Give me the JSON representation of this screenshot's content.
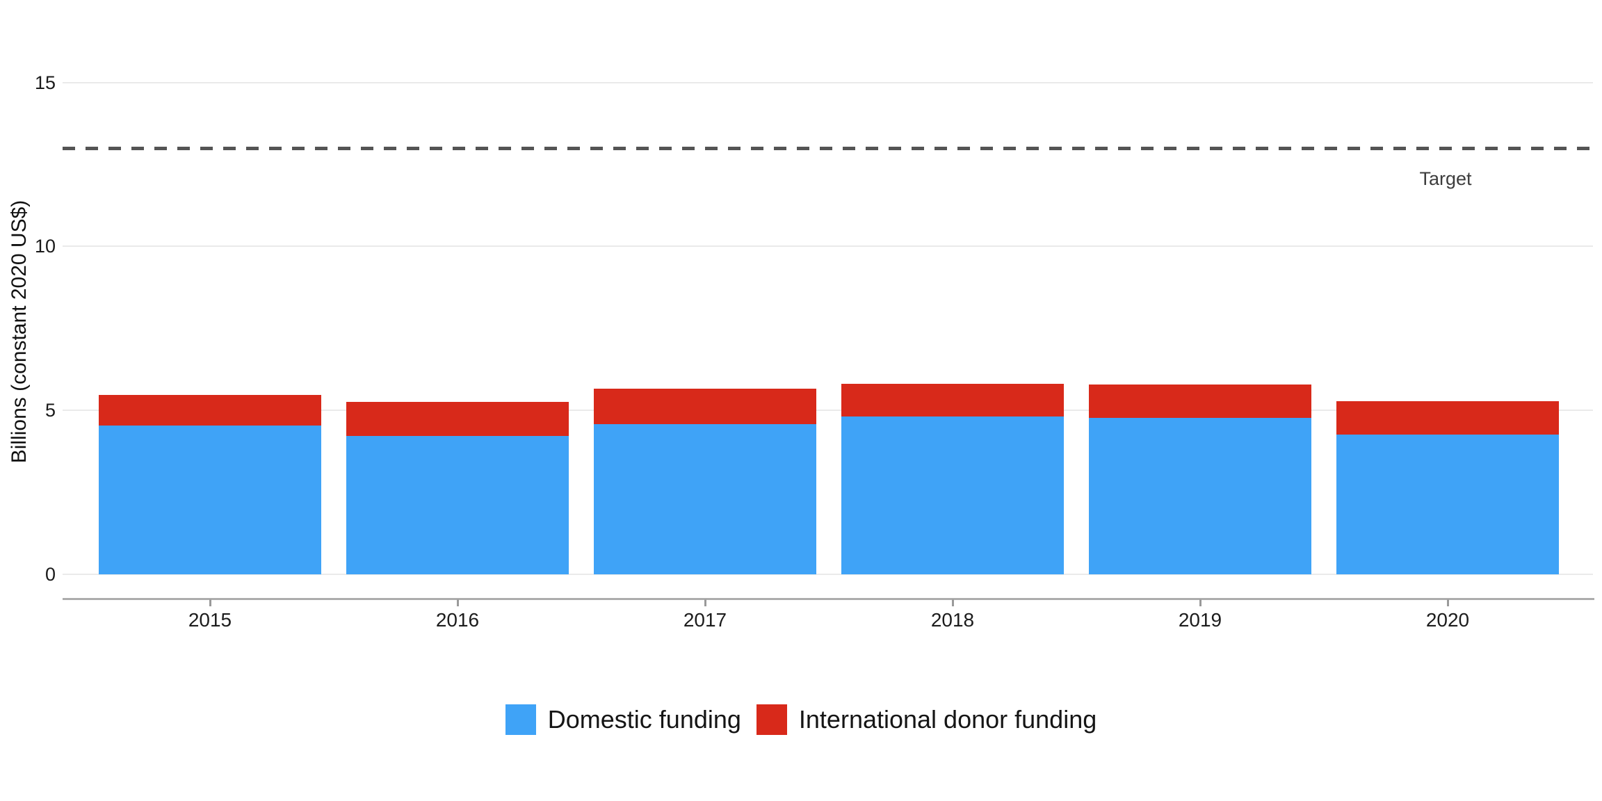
{
  "figure": {
    "y_axis_title": "Billions (constant 2020 US$)",
    "target_label": "Target"
  },
  "colors": {
    "domestic": "#3FA3F7",
    "international": "#D8291A",
    "gridline": "#EAEAEA",
    "target_line": "#545454",
    "axis_line": "#ACACAC"
  },
  "legend": {
    "items": [
      {
        "label": "Domestic funding",
        "color": "#3FA3F7"
      },
      {
        "label": "International donor funding",
        "color": "#D8291A"
      }
    ]
  },
  "chart_data": {
    "type": "bar",
    "stacked": true,
    "title": "",
    "xlabel": "",
    "ylabel": "Billions (constant 2020 US$)",
    "categories": [
      "2015",
      "2016",
      "2017",
      "2018",
      "2019",
      "2020"
    ],
    "series": [
      {
        "name": "Domestic funding",
        "color": "#3FA3F7",
        "values": [
          4.54,
          4.22,
          4.58,
          4.81,
          4.77,
          4.26
        ]
      },
      {
        "name": "International donor funding",
        "color": "#D8291A",
        "values": [
          0.93,
          1.04,
          1.09,
          1.0,
          1.01,
          1.01
        ]
      }
    ],
    "totals": [
      5.47,
      5.26,
      5.67,
      5.81,
      5.78,
      5.27
    ],
    "reference_line": {
      "label": "Target",
      "value": 13,
      "style": "dashed"
    },
    "y_ticks": [
      0,
      5,
      10,
      15
    ],
    "ylim": [
      0,
      17.5
    ],
    "grid": "horizontal",
    "legend_position": "bottom-center"
  }
}
